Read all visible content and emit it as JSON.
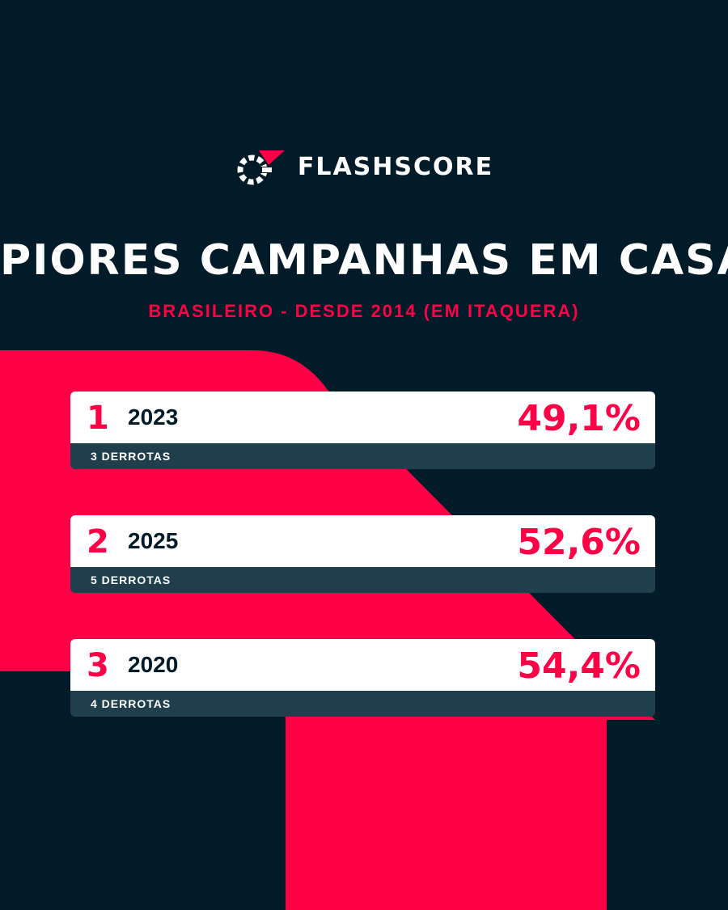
{
  "brand": {
    "name": "FLASHSCORE",
    "accent_color": "#ff0046",
    "background_color": "#011c28",
    "logo_icon": "flashscore-logo-icon"
  },
  "header": {
    "title": "PIORES CAMPANHAS EM CASA",
    "subtitle": "BRASILEIRO - DESDE 2014 (EM ITAQUERA)"
  },
  "ranking": [
    {
      "rank": "1",
      "year": "2023",
      "percentage": "49,1%",
      "detail": "3 DERROTAS"
    },
    {
      "rank": "2",
      "year": "2025",
      "percentage": "52,6%",
      "detail": "5 DERROTAS"
    },
    {
      "rank": "3",
      "year": "2020",
      "percentage": "54,4%",
      "detail": "4 DERROTAS"
    }
  ]
}
